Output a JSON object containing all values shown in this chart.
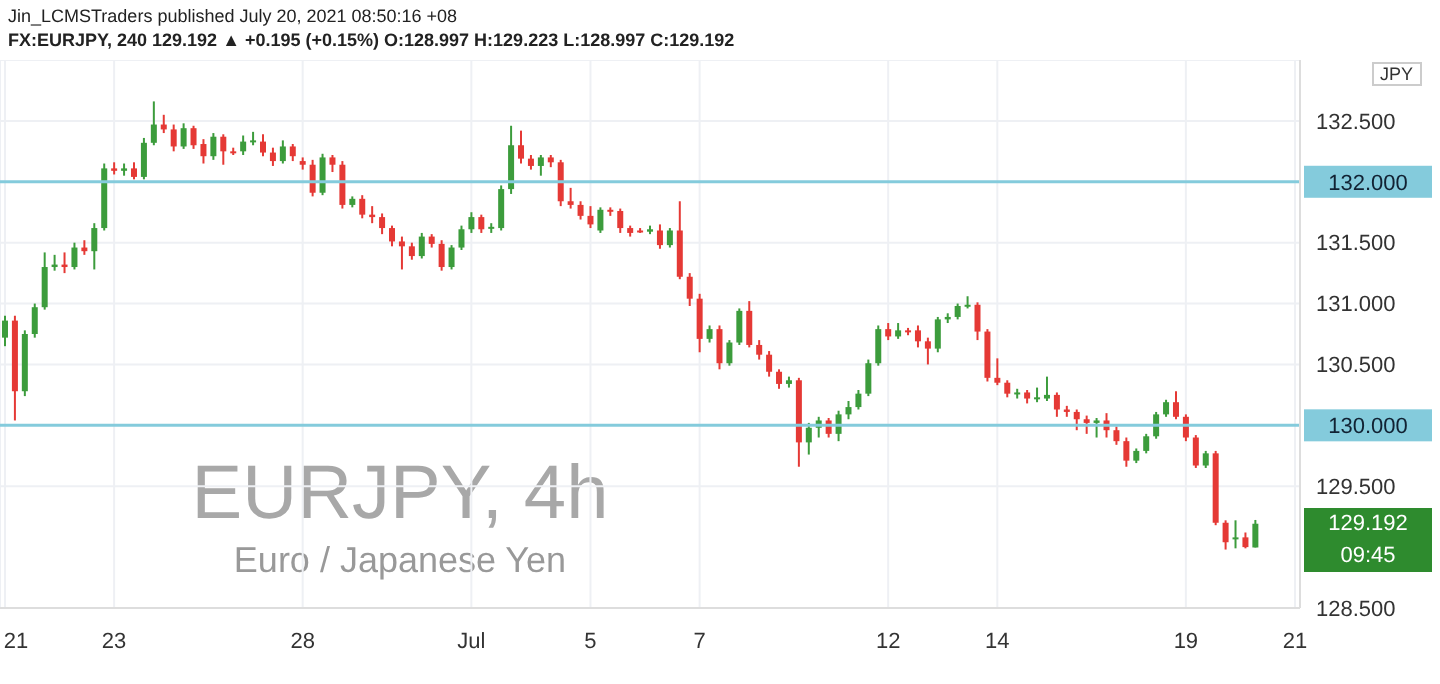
{
  "chart_data": {
    "type": "candlestick",
    "title": "EURJPY, 4h",
    "subtitle": "Euro / Japanese Yen",
    "ylabel": "JPY",
    "annotations": [
      "Jin_LCMSTraders published July 20, 2021 08:50:16 +08",
      "FX:EURJPY, 240  129.192 ▲ +0.195 (+0.15%)  O:128.997  H:129.223  L:128.997  C:129.192",
      "129.192",
      "09:45"
    ],
    "categories": [
      "21",
      null,
      null,
      null,
      null,
      null,
      null,
      null,
      null,
      null,
      null,
      "23",
      null,
      null,
      null,
      null,
      null,
      null,
      null,
      null,
      null,
      null,
      null,
      null,
      null,
      null,
      null,
      null,
      null,
      null,
      "28",
      null,
      null,
      null,
      null,
      null,
      null,
      null,
      null,
      null,
      null,
      null,
      null,
      null,
      null,
      null,
      null,
      "Jul",
      null,
      null,
      null,
      null,
      null,
      null,
      null,
      null,
      null,
      null,
      null,
      "5",
      null,
      null,
      null,
      null,
      null,
      null,
      null,
      null,
      null,
      null,
      "7",
      null,
      null,
      null,
      null,
      null,
      null,
      null,
      null,
      null,
      null,
      null,
      null,
      null,
      null,
      null,
      null,
      null,
      null,
      "12",
      null,
      null,
      null,
      null,
      null,
      null,
      null,
      null,
      null,
      null,
      "14",
      null,
      null,
      null,
      null,
      null,
      null,
      null,
      null,
      null,
      null,
      null,
      null,
      null,
      null,
      null,
      null,
      null,
      null,
      "19",
      null,
      null,
      null,
      null,
      null,
      null,
      null,
      null,
      null,
      null,
      "21"
    ],
    "ohlc": [
      [
        130.72,
        130.9,
        130.65,
        130.86
      ],
      [
        130.86,
        130.9,
        130.04,
        130.28
      ],
      [
        130.28,
        130.78,
        130.24,
        130.75
      ],
      [
        130.75,
        131.0,
        130.72,
        130.97
      ],
      [
        130.97,
        131.42,
        130.95,
        131.3
      ],
      [
        131.3,
        131.4,
        131.27,
        131.32
      ],
      [
        131.32,
        131.42,
        131.25,
        131.3
      ],
      [
        131.3,
        131.5,
        131.28,
        131.46
      ],
      [
        131.46,
        131.52,
        131.4,
        131.43
      ],
      [
        131.43,
        131.66,
        131.28,
        131.62
      ],
      [
        131.62,
        132.15,
        131.6,
        132.11
      ],
      [
        132.11,
        132.16,
        132.06,
        132.09
      ],
      [
        132.09,
        132.15,
        132.05,
        132.11
      ],
      [
        132.11,
        132.16,
        132.02,
        132.04
      ],
      [
        132.04,
        132.36,
        132.02,
        132.32
      ],
      [
        132.32,
        132.66,
        132.3,
        132.47
      ],
      [
        132.47,
        132.55,
        132.4,
        132.43
      ],
      [
        132.43,
        132.47,
        132.25,
        132.29
      ],
      [
        132.29,
        132.48,
        132.27,
        132.44
      ],
      [
        132.44,
        132.46,
        132.27,
        132.3
      ],
      [
        132.31,
        132.35,
        132.15,
        132.21
      ],
      [
        132.21,
        132.4,
        132.18,
        132.37
      ],
      [
        132.37,
        132.39,
        132.14,
        132.25
      ],
      [
        132.25,
        132.28,
        132.22,
        132.24
      ],
      [
        132.25,
        132.38,
        132.22,
        132.33
      ],
      [
        132.33,
        132.41,
        132.3,
        132.34
      ],
      [
        132.33,
        132.39,
        132.21,
        132.24
      ],
      [
        132.24,
        132.28,
        132.13,
        132.17
      ],
      [
        132.17,
        132.34,
        132.15,
        132.29
      ],
      [
        132.29,
        132.31,
        132.17,
        132.21
      ],
      [
        132.17,
        132.2,
        132.1,
        132.14
      ],
      [
        132.14,
        132.18,
        131.88,
        131.91
      ],
      [
        131.91,
        132.23,
        131.89,
        132.2
      ],
      [
        132.2,
        132.22,
        132.08,
        132.14
      ],
      [
        132.14,
        132.17,
        131.78,
        131.81
      ],
      [
        131.81,
        131.88,
        131.79,
        131.86
      ],
      [
        131.86,
        131.89,
        131.7,
        131.73
      ],
      [
        131.73,
        131.8,
        131.66,
        131.71
      ],
      [
        131.71,
        131.74,
        131.57,
        131.62
      ],
      [
        131.62,
        131.64,
        131.47,
        131.51
      ],
      [
        131.51,
        131.55,
        131.28,
        131.47
      ],
      [
        131.47,
        131.5,
        131.36,
        131.39
      ],
      [
        131.39,
        131.58,
        131.37,
        131.55
      ],
      [
        131.55,
        131.57,
        131.46,
        131.49
      ],
      [
        131.49,
        131.52,
        131.27,
        131.3
      ],
      [
        131.3,
        131.48,
        131.28,
        131.46
      ],
      [
        131.46,
        131.64,
        131.44,
        131.61
      ],
      [
        131.61,
        131.75,
        131.58,
        131.71
      ],
      [
        131.71,
        131.73,
        131.58,
        131.61
      ],
      [
        131.62,
        131.66,
        131.58,
        131.63
      ],
      [
        131.62,
        131.97,
        131.6,
        131.94
      ],
      [
        131.94,
        132.46,
        131.9,
        132.3
      ],
      [
        132.3,
        132.42,
        132.15,
        132.19
      ],
      [
        132.19,
        132.22,
        132.1,
        132.13
      ],
      [
        132.13,
        132.22,
        132.05,
        132.2
      ],
      [
        132.2,
        132.22,
        132.12,
        132.16
      ],
      [
        132.16,
        132.18,
        131.8,
        131.84
      ],
      [
        131.84,
        131.95,
        131.78,
        131.81
      ],
      [
        131.81,
        131.84,
        131.69,
        131.72
      ],
      [
        131.72,
        131.8,
        131.62,
        131.65
      ],
      [
        131.6,
        131.79,
        131.58,
        131.77
      ],
      [
        131.77,
        131.79,
        131.72,
        131.76
      ],
      [
        131.76,
        131.78,
        131.58,
        131.62
      ],
      [
        131.62,
        131.64,
        131.55,
        131.58
      ],
      [
        131.6,
        131.62,
        131.58,
        131.59
      ],
      [
        131.59,
        131.64,
        131.57,
        131.61
      ],
      [
        131.6,
        131.65,
        131.45,
        131.48
      ],
      [
        131.48,
        131.62,
        131.46,
        131.6
      ],
      [
        131.6,
        131.84,
        131.2,
        131.22
      ],
      [
        131.22,
        131.25,
        130.98,
        131.04
      ],
      [
        131.04,
        131.08,
        130.6,
        130.71
      ],
      [
        130.71,
        130.82,
        130.68,
        130.79
      ],
      [
        130.79,
        130.82,
        130.46,
        130.51
      ],
      [
        130.51,
        130.7,
        130.49,
        130.68
      ],
      [
        130.68,
        130.96,
        130.66,
        130.94
      ],
      [
        130.94,
        131.02,
        130.64,
        130.66
      ],
      [
        130.66,
        130.7,
        130.54,
        130.58
      ],
      [
        130.58,
        130.61,
        130.4,
        130.44
      ],
      [
        130.44,
        130.46,
        130.3,
        130.34
      ],
      [
        130.34,
        130.4,
        130.31,
        130.37
      ],
      [
        130.37,
        130.39,
        129.66,
        129.86
      ],
      [
        129.86,
        130.02,
        129.76,
        129.98
      ],
      [
        129.98,
        130.07,
        129.9,
        130.04
      ],
      [
        130.04,
        130.06,
        129.9,
        129.93
      ],
      [
        129.93,
        130.12,
        129.87,
        130.09
      ],
      [
        130.09,
        130.2,
        130.05,
        130.15
      ],
      [
        130.15,
        130.29,
        130.13,
        130.26
      ],
      [
        130.26,
        130.54,
        130.24,
        130.51
      ],
      [
        130.51,
        130.82,
        130.49,
        130.79
      ],
      [
        130.79,
        130.84,
        130.7,
        130.73
      ],
      [
        130.73,
        130.84,
        130.71,
        130.78
      ],
      [
        130.78,
        130.8,
        130.74,
        130.77
      ],
      [
        130.78,
        130.82,
        130.64,
        130.69
      ],
      [
        130.69,
        130.72,
        130.5,
        130.63
      ],
      [
        130.63,
        130.89,
        130.6,
        130.87
      ],
      [
        130.87,
        130.92,
        130.84,
        130.89
      ],
      [
        130.89,
        131.0,
        130.87,
        130.98
      ],
      [
        130.98,
        131.06,
        130.96,
        130.99
      ],
      [
        130.99,
        131.01,
        130.7,
        130.77
      ],
      [
        130.77,
        130.79,
        130.36,
        130.39
      ],
      [
        130.39,
        130.55,
        130.33,
        130.35
      ],
      [
        130.35,
        130.37,
        130.23,
        130.26
      ],
      [
        130.26,
        130.3,
        130.22,
        130.27
      ],
      [
        130.27,
        130.29,
        130.18,
        130.22
      ],
      [
        130.22,
        130.31,
        130.19,
        130.23
      ],
      [
        130.22,
        130.4,
        130.2,
        130.25
      ],
      [
        130.25,
        130.27,
        130.07,
        130.13
      ],
      [
        130.13,
        130.16,
        130.07,
        130.11
      ],
      [
        130.11,
        130.13,
        129.96,
        130.05
      ],
      [
        130.05,
        130.08,
        129.93,
        130.02
      ],
      [
        130.02,
        130.06,
        129.9,
        130.04
      ],
      [
        130.04,
        130.1,
        129.9,
        129.96
      ],
      [
        129.96,
        129.99,
        129.84,
        129.87
      ],
      [
        129.87,
        129.9,
        129.66,
        129.71
      ],
      [
        129.71,
        129.81,
        129.69,
        129.79
      ],
      [
        129.79,
        129.93,
        129.77,
        129.91
      ],
      [
        129.91,
        130.11,
        129.89,
        130.09
      ],
      [
        130.09,
        130.21,
        130.07,
        130.19
      ],
      [
        130.19,
        130.28,
        130.05,
        130.07
      ],
      [
        130.07,
        130.09,
        129.87,
        129.9
      ],
      [
        129.9,
        129.92,
        129.65,
        129.67
      ],
      [
        129.67,
        129.79,
        129.65,
        129.77
      ],
      [
        129.77,
        129.79,
        129.18,
        129.2
      ],
      [
        129.2,
        129.22,
        128.98,
        129.04
      ],
      [
        129.07,
        129.22,
        128.99,
        129.08
      ],
      [
        129.08,
        129.12,
        128.99,
        129.0
      ],
      [
        128.997,
        129.223,
        128.997,
        129.192
      ],
      null,
      null,
      null,
      null
    ],
    "colors": [
      "#3c9c3c",
      "#e53935",
      "#3c9c3c",
      "#3c9c3c",
      "#3c9c3c",
      "#3c9c3c",
      "#e53935",
      "#3c9c3c",
      "#e53935",
      "#3c9c3c",
      "#3c9c3c",
      "#e53935",
      "#3c9c3c",
      "#e53935",
      "#3c9c3c",
      "#3c9c3c",
      "#e53935",
      "#e53935",
      "#3c9c3c",
      "#e53935",
      "#e53935",
      "#3c9c3c",
      "#e53935",
      "#e53935",
      "#3c9c3c",
      "#3c9c3c",
      "#e53935",
      "#e53935",
      "#3c9c3c",
      "#e53935",
      "#e53935",
      "#e53935",
      "#3c9c3c",
      "#e53935",
      "#e53935",
      "#3c9c3c",
      "#e53935",
      "#e53935",
      "#e53935",
      "#e53935",
      "#e53935",
      "#e53935",
      "#3c9c3c",
      "#e53935",
      "#e53935",
      "#3c9c3c",
      "#3c9c3c",
      "#3c9c3c",
      "#e53935",
      "#3c9c3c",
      "#3c9c3c",
      "#3c9c3c",
      "#e53935",
      "#e53935",
      "#3c9c3c",
      "#e53935",
      "#e53935",
      "#e53935",
      "#e53935",
      "#e53935",
      "#3c9c3c",
      "#e53935",
      "#e53935",
      "#e53935",
      "#e53935",
      "#3c9c3c",
      "#e53935",
      "#3c9c3c",
      "#e53935",
      "#e53935",
      "#e53935",
      "#3c9c3c",
      "#e53935",
      "#3c9c3c",
      "#3c9c3c",
      "#e53935",
      "#e53935",
      "#e53935",
      "#e53935",
      "#3c9c3c",
      "#e53935",
      "#3c9c3c",
      "#3c9c3c",
      "#e53935",
      "#3c9c3c",
      "#3c9c3c",
      "#3c9c3c",
      "#3c9c3c",
      "#3c9c3c",
      "#e53935",
      "#3c9c3c",
      "#e53935",
      "#e53935",
      "#e53935",
      "#3c9c3c",
      "#3c9c3c",
      "#3c9c3c",
      "#3c9c3c",
      "#e53935",
      "#e53935",
      "#e53935",
      "#e53935",
      "#3c9c3c",
      "#e53935",
      "#3c9c3c",
      "#3c9c3c",
      "#e53935",
      "#e53935",
      "#e53935",
      "#e53935",
      "#3c9c3c",
      "#e53935",
      "#e53935",
      "#e53935",
      "#3c9c3c",
      "#3c9c3c",
      "#3c9c3c",
      "#3c9c3c",
      "#e53935",
      "#e53935",
      "#e53935",
      "#3c9c3c",
      "#e53935",
      "#e53935",
      "#3c9c3c",
      "#e53935",
      "#3c9c3c",
      null,
      null,
      null,
      null
    ],
    "ylim": [
      128.5,
      133.0
    ],
    "yticks": [
      {
        "value": 128.5,
        "label": "128.500"
      },
      {
        "value": 129.5,
        "label": "129.500"
      },
      {
        "value": 130.5,
        "label": "130.500"
      },
      {
        "value": 131.0,
        "label": "131.000"
      },
      {
        "value": 131.5,
        "label": "131.500"
      },
      {
        "value": 132.5,
        "label": "132.500"
      }
    ],
    "ref_lines": [
      {
        "axis": "y",
        "value": 132.0,
        "label": "132.000",
        "color": "#84cbdc"
      },
      {
        "axis": "y",
        "value": 130.0,
        "label": "130.000",
        "color": "#84cbdc"
      }
    ],
    "grid": true
  }
}
